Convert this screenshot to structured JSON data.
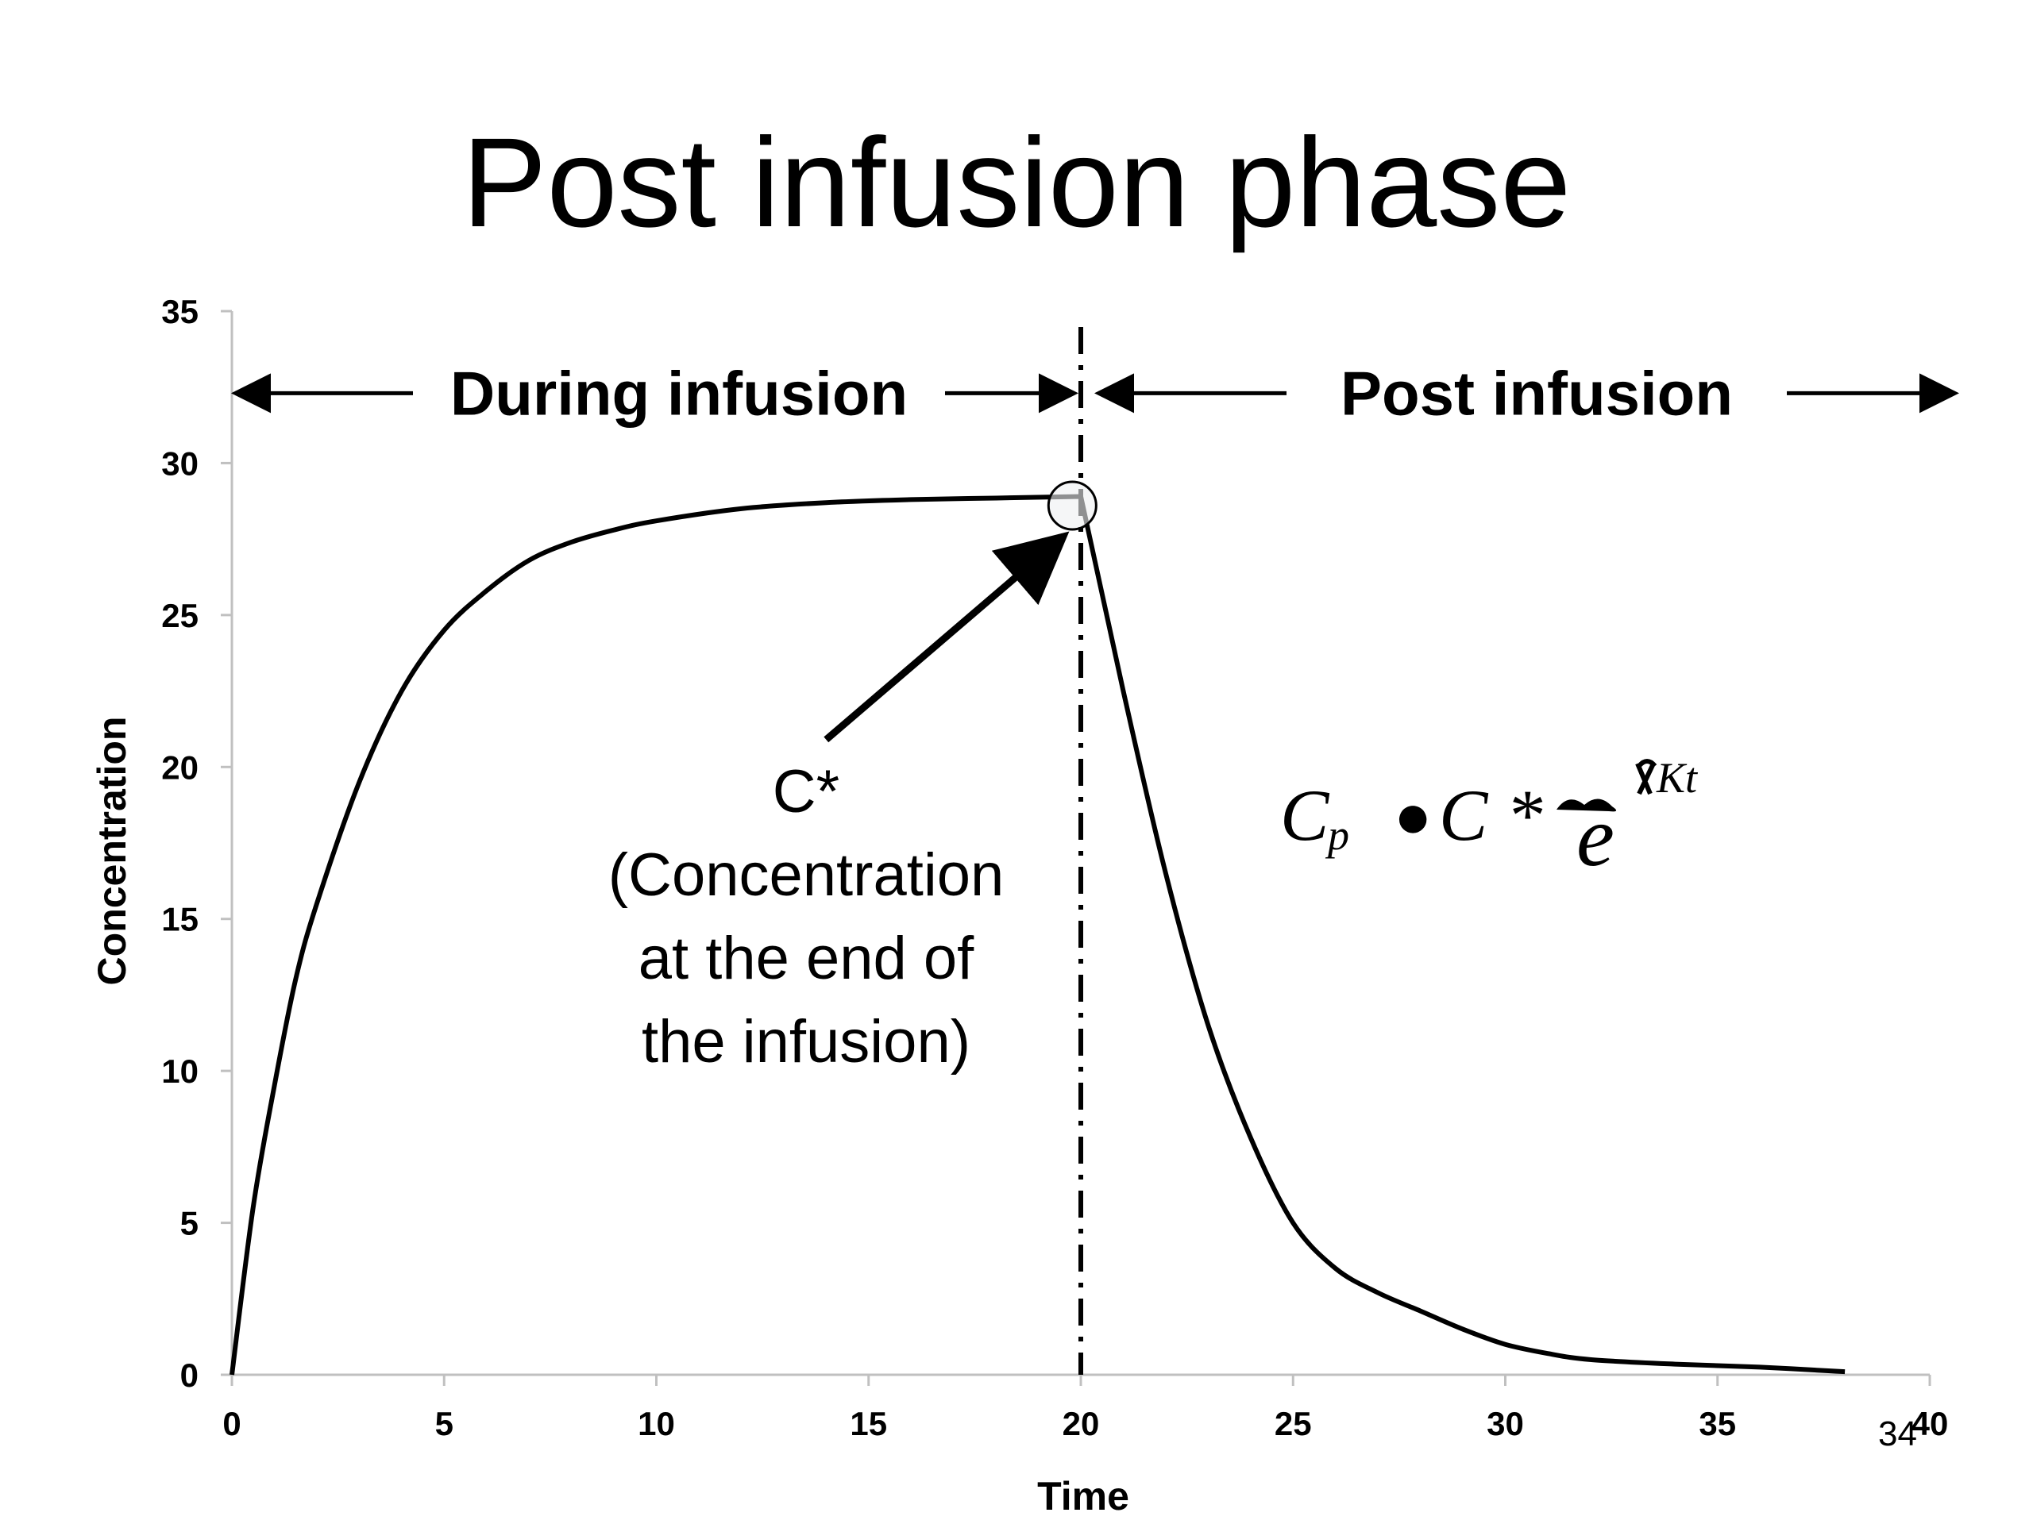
{
  "slide": {
    "title": "Post infusion phase",
    "page_number": "34"
  },
  "formula": {
    "lhs": "C",
    "lhs_sub": "p",
    "operator_glyph": "●",
    "rhs": "C *",
    "exp_base": "e",
    "exp_power": "Kt"
  },
  "chart_data": {
    "type": "line",
    "xlabel": "Time",
    "ylabel": "Concentration",
    "xlim": [
      0,
      40
    ],
    "ylim": [
      0,
      35
    ],
    "x_ticks": [
      0,
      5,
      10,
      15,
      20,
      25,
      30,
      35,
      40
    ],
    "y_ticks": [
      0,
      5,
      10,
      15,
      20,
      25,
      30,
      35
    ],
    "series": [
      {
        "x": [
          0,
          0.5,
          1,
          1.5,
          2,
          3,
          4,
          5,
          6,
          7,
          8,
          9,
          10,
          12,
          14,
          16,
          18,
          20,
          21,
          22,
          23,
          24,
          25,
          26,
          27,
          28,
          29,
          30,
          31,
          32,
          34,
          36,
          38
        ],
        "y": [
          0,
          5.5,
          9.5,
          13.0,
          15.5,
          19.5,
          22.5,
          24.5,
          25.8,
          26.8,
          27.4,
          27.8,
          28.1,
          28.5,
          28.7,
          28.8,
          28.85,
          28.9,
          22.5,
          16.5,
          11.5,
          7.8,
          5.0,
          3.5,
          2.7,
          2.1,
          1.5,
          1.0,
          0.7,
          0.5,
          0.35,
          0.25,
          0.1
        ]
      }
    ],
    "vertical_marker": {
      "x": 20,
      "style": "dash-dot"
    },
    "highlight_point": {
      "x": 19.8,
      "y": 28.6
    },
    "regions": [
      {
        "label": "During infusion",
        "from": 0,
        "to": 20
      },
      {
        "label": "Post infusion",
        "from": 20,
        "to": 40
      }
    ],
    "region_arrow_y": 32.3,
    "annotation": {
      "lines": [
        "C*",
        "(Concentration",
        "at the end of",
        "the infusion)"
      ],
      "arrow_from": {
        "x": 14,
        "y": 20.9
      },
      "arrow_to": {
        "x": 19.6,
        "y": 27.6
      }
    },
    "grid": false,
    "legend": "none"
  }
}
